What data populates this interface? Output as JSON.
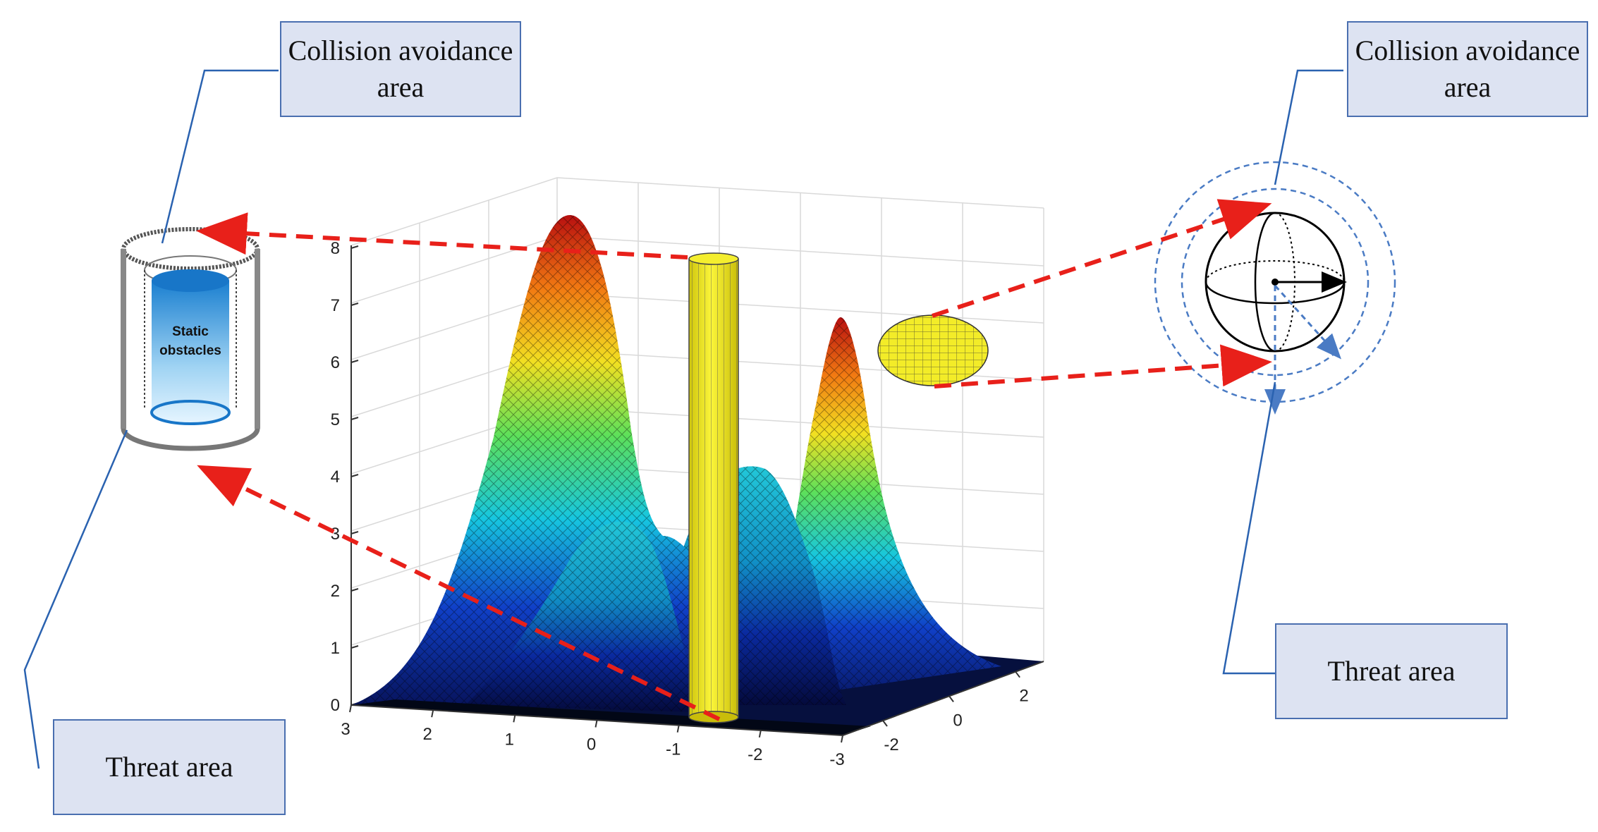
{
  "labels": {
    "left_collision": "Collision avoidance area",
    "left_threat": "Threat area",
    "right_collision": "Collision avoidance area",
    "right_threat": "Threat area",
    "static_obstacles": "Static obstacles"
  },
  "axes": {
    "z_ticks": [
      "0",
      "1",
      "2",
      "3",
      "4",
      "5",
      "6",
      "7",
      "8"
    ],
    "x_ticks": [
      "3",
      "2",
      "1",
      "0",
      "-1",
      "-2",
      "-3"
    ],
    "y_ticks": [
      "-2",
      "0",
      "2"
    ]
  },
  "colors": {
    "arrow_red": "#e8201a",
    "leader_blue": "#2a62b0",
    "box_fill": "#dde3f2",
    "cylinder_yellow": "#f5f020",
    "sphere_blue_dashed": "#4a7bc4"
  }
}
